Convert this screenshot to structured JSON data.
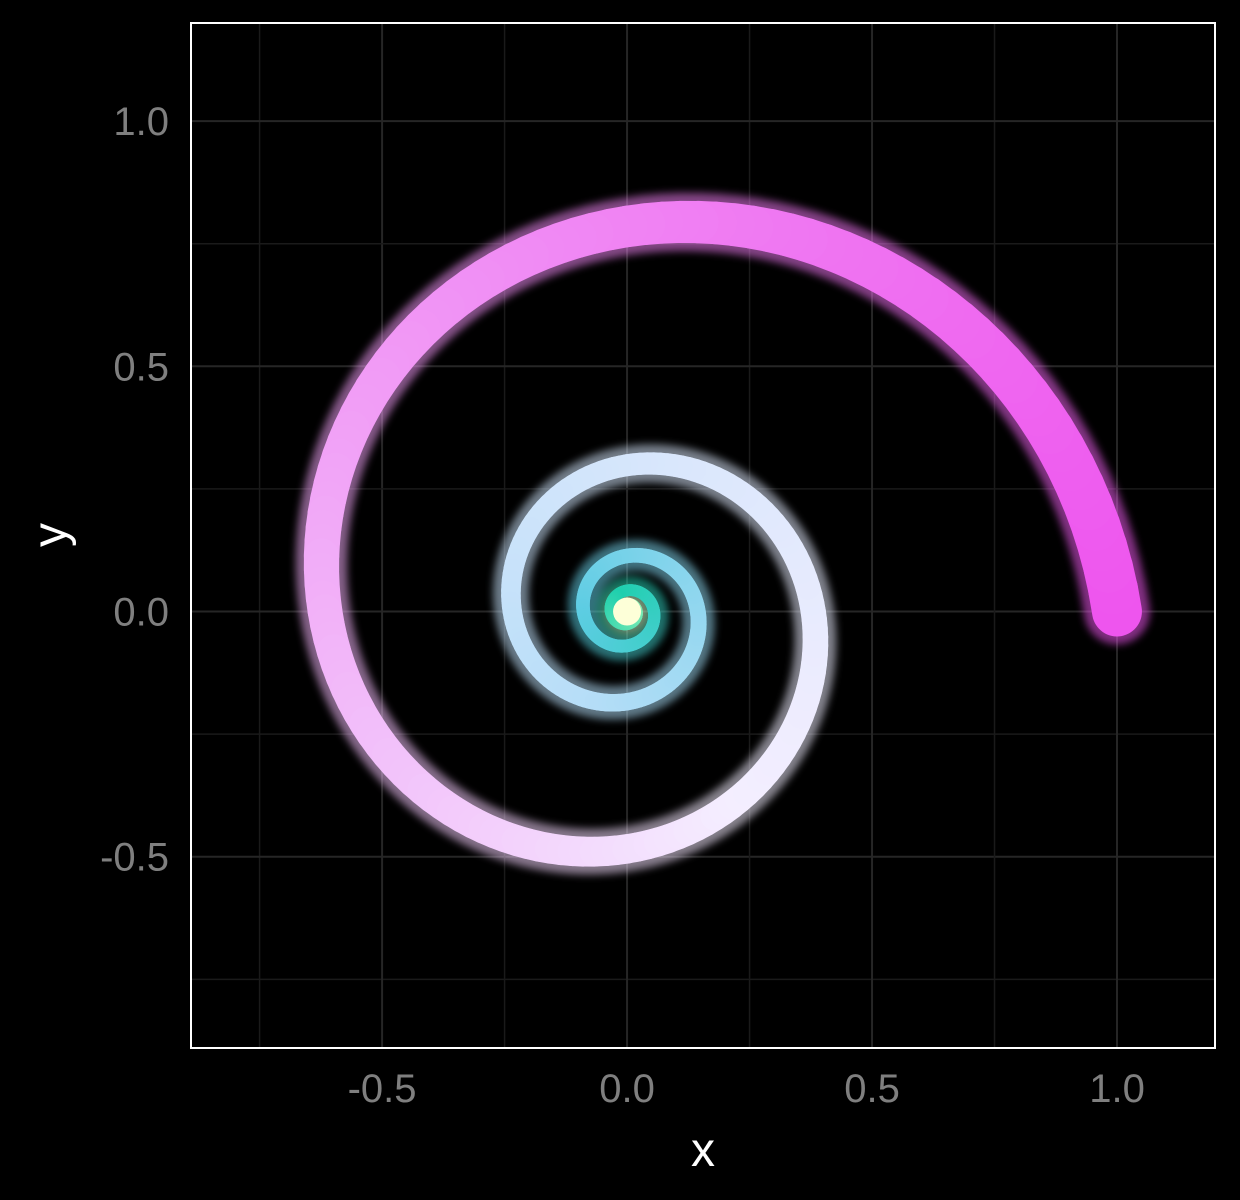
{
  "chart_data": {
    "type": "line",
    "title": "",
    "xlabel": "x",
    "ylabel": "y",
    "xlim": [
      -0.89,
      1.2
    ],
    "ylim": [
      -0.89,
      1.2
    ],
    "x_ticks": [
      -0.5,
      0.0,
      0.5,
      1.0
    ],
    "x_tick_labels": [
      "-0.5",
      "0.0",
      "0.5",
      "1.0"
    ],
    "y_ticks": [
      -0.5,
      0.0,
      0.5,
      1.0
    ],
    "y_tick_labels": [
      "-0.5",
      "0.0",
      "0.5",
      "1.0"
    ],
    "grid": true,
    "background": "#000000",
    "series": [
      {
        "curve": "logarithmic spiral r = exp(-b*theta), theta from 0 to 10*pi, counter-clockwise toward the origin",
        "start_point": [
          1.0,
          0.0
        ],
        "end_point": [
          0.0,
          0.0
        ],
        "turns": 5,
        "decay_per_turn": 0.38,
        "colors": [
          "#ee55ee",
          "#f4eeff",
          "#b8def8",
          "#5ecde3",
          "#1fcfae",
          "#8df0b4",
          "#fdffd8"
        ]
      }
    ]
  }
}
